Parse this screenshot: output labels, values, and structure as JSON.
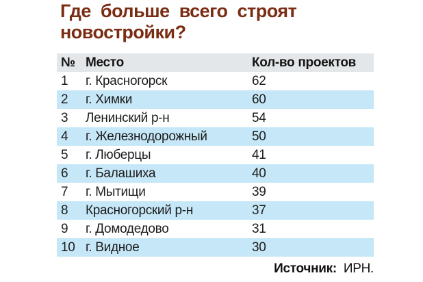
{
  "title": "Где больше всего строят новостройки?",
  "table": {
    "headers": {
      "num": "№",
      "place": "Место",
      "count": "Кол-во проектов"
    },
    "rows": [
      {
        "num": "1",
        "place": "г. Красногорск",
        "count": "62"
      },
      {
        "num": "2",
        "place": "г. Химки",
        "count": "60"
      },
      {
        "num": "3",
        "place": "Ленинский р-н",
        "count": "54"
      },
      {
        "num": "4",
        "place": "г. Железнодорожный",
        "count": "50"
      },
      {
        "num": "5",
        "place": "г. Люберцы",
        "count": "41"
      },
      {
        "num": "6",
        "place": "г. Балашиха",
        "count": "40"
      },
      {
        "num": "7",
        "place": "г. Мытищи",
        "count": "39"
      },
      {
        "num": "8",
        "place": "Красногорский р-н",
        "count": "37"
      },
      {
        "num": "9",
        "place": "г. Домодедово",
        "count": "31"
      },
      {
        "num": "10",
        "place": "г. Видное",
        "count": "30"
      }
    ]
  },
  "source": {
    "label": "Источник:",
    "value": "ИРН."
  },
  "colors": {
    "title": "#7a2d13",
    "header_bg": "#e4e7e9",
    "zebra_bg": "#c6e7f7",
    "text": "#1c1c1c",
    "background": "#ffffff"
  },
  "chart_data": {
    "type": "table",
    "title": "Где больше всего строят новостройки?",
    "columns": [
      "№",
      "Место",
      "Кол-во проектов"
    ],
    "categories": [
      "г. Красногорск",
      "г. Химки",
      "Ленинский р-н",
      "г. Железнодорожный",
      "г. Люберцы",
      "г. Балашиха",
      "г. Мытищи",
      "Красногорский р-н",
      "г. Домодедово",
      "г. Видное"
    ],
    "values": [
      62,
      60,
      54,
      50,
      41,
      40,
      39,
      37,
      31,
      30
    ],
    "source": "Источник: ИРН."
  }
}
